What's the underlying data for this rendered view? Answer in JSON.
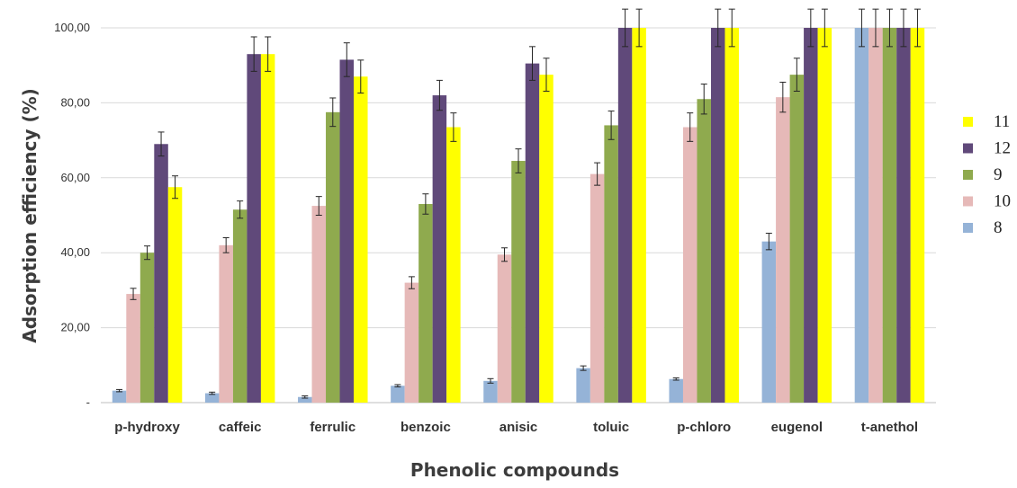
{
  "chart_data": {
    "type": "bar",
    "title": "",
    "xlabel": "Phenolic compounds",
    "ylabel": "Adsorption efficiency (%)",
    "ylim": [
      0,
      100
    ],
    "yticks": [
      0,
      20,
      40,
      60,
      80,
      100
    ],
    "ytick_labels": [
      "-",
      "20,00",
      "40,00",
      "60,00",
      "80,00",
      "100,00"
    ],
    "grid": true,
    "legend_position": "right",
    "categories": [
      "p-hydroxy",
      "caffeic",
      "ferrulic",
      "benzoic",
      "anisic",
      "toluic",
      "p-chloro",
      "eugenol",
      "t-anethol"
    ],
    "series": [
      {
        "name": "8",
        "color": "#95b3d7",
        "values": [
          3.2,
          2.5,
          1.5,
          4.5,
          5.8,
          9.2,
          6.3,
          43.0,
          100
        ],
        "errors": [
          0.3,
          0.3,
          0.3,
          0.3,
          0.6,
          0.6,
          0.3,
          2.2,
          5
        ]
      },
      {
        "name": "10",
        "color": "#e6b9b8",
        "values": [
          29.0,
          42.0,
          52.5,
          32.0,
          39.5,
          61.0,
          73.5,
          81.5,
          100
        ],
        "errors": [
          1.5,
          2.0,
          2.5,
          1.6,
          1.8,
          3.0,
          3.8,
          4.0,
          5
        ]
      },
      {
        "name": "9",
        "color": "#8faa4e",
        "values": [
          40.0,
          51.5,
          77.5,
          53.0,
          64.5,
          74.0,
          81.0,
          87.5,
          100
        ],
        "errors": [
          1.8,
          2.3,
          3.8,
          2.7,
          3.2,
          3.8,
          4.0,
          4.4,
          5
        ]
      },
      {
        "name": "12",
        "color": "#60497a",
        "values": [
          69.0,
          93.0,
          91.5,
          82.0,
          90.5,
          100,
          100,
          100,
          100
        ],
        "errors": [
          3.2,
          4.6,
          4.5,
          4.0,
          4.5,
          5,
          5,
          5,
          5
        ]
      },
      {
        "name": "11",
        "color": "#ffff00",
        "values": [
          57.5,
          93.0,
          87.0,
          73.5,
          87.5,
          100,
          100,
          100,
          100
        ],
        "errors": [
          3.0,
          4.6,
          4.4,
          3.8,
          4.4,
          5,
          5,
          5,
          5
        ]
      }
    ],
    "legend_order": [
      "11",
      "12",
      "9",
      "10",
      "8"
    ]
  }
}
